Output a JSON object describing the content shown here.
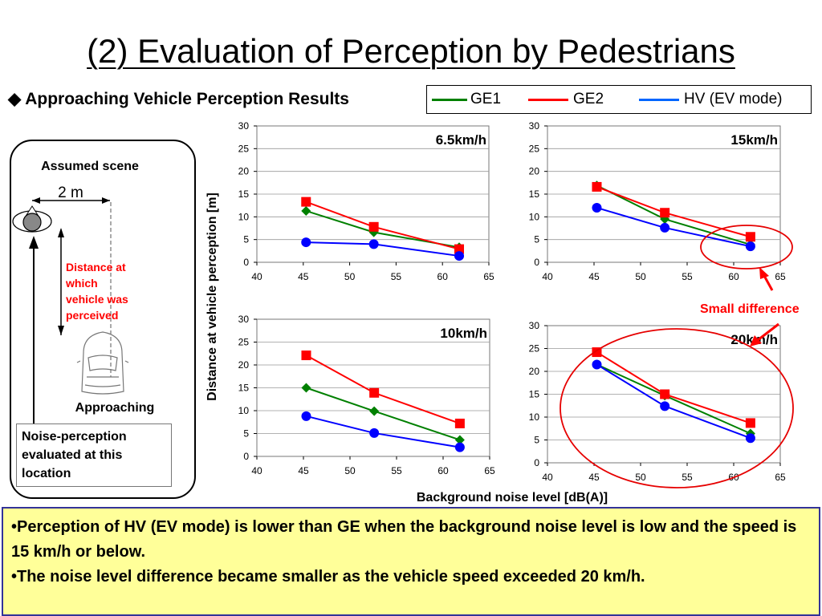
{
  "slide": {
    "title": "(2) Evaluation of Perception by Pedestrians",
    "subtitle": "◆ Approaching Vehicle Perception Results",
    "y_axis_label": "Distance at vehicle perception [m]",
    "x_axis_label": "Background noise level [dB(A)]",
    "annotation": "Small difference",
    "summary": [
      "•Perception of HV (EV mode) is lower than GE when the background noise level is low and the speed is 15 km/h or below.",
      "•The noise level difference became smaller as the vehicle speed exceeded 20 km/h."
    ]
  },
  "legend": {
    "entries": [
      {
        "name": "GE1",
        "color": "#008000",
        "marker": "diamond"
      },
      {
        "name": "GE2",
        "color": "#ff0000",
        "marker": "square"
      },
      {
        "name": "HV (EV mode)",
        "color": "#0000ff",
        "marker": "circle"
      }
    ]
  },
  "scene": {
    "title": "Assumed scene",
    "distance_label": "2 m",
    "perceived_label": "Distance at which vehicle was perceived",
    "approaching_label": "Approaching",
    "note": "Noise-perception evaluated at this location"
  },
  "chart_data": [
    {
      "type": "line",
      "title": "6.5km/h",
      "xlim": [
        40,
        65
      ],
      "ylim": [
        0,
        30
      ],
      "xticks": [
        40,
        45,
        50,
        55,
        60,
        65
      ],
      "yticks": [
        0,
        5,
        10,
        15,
        20,
        25,
        30
      ],
      "series": [
        {
          "name": "GE1",
          "x": [
            45.3,
            52.6,
            61.8
          ],
          "values": [
            11.3,
            6.6,
            3.3
          ]
        },
        {
          "name": "GE2",
          "x": [
            45.3,
            52.6,
            61.8
          ],
          "values": [
            13.3,
            7.8,
            2.9
          ]
        },
        {
          "name": "HV (EV mode)",
          "x": [
            45.3,
            52.6,
            61.8
          ],
          "values": [
            4.4,
            4.0,
            1.4
          ]
        }
      ]
    },
    {
      "type": "line",
      "title": "15km/h",
      "xlim": [
        40,
        65
      ],
      "ylim": [
        0,
        30
      ],
      "xticks": [
        40,
        45,
        50,
        55,
        60,
        65
      ],
      "yticks": [
        0,
        5,
        10,
        15,
        20,
        25,
        30
      ],
      "series": [
        {
          "name": "GE1",
          "x": [
            45.3,
            52.6,
            61.8
          ],
          "values": [
            16.9,
            9.5,
            3.9
          ]
        },
        {
          "name": "GE2",
          "x": [
            45.3,
            52.6,
            61.8
          ],
          "values": [
            16.6,
            10.9,
            5.6
          ]
        },
        {
          "name": "HV (EV mode)",
          "x": [
            45.3,
            52.6,
            61.8
          ],
          "values": [
            12.0,
            7.6,
            3.5
          ]
        }
      ]
    },
    {
      "type": "line",
      "title": "10km/h",
      "xlim": [
        40,
        65
      ],
      "ylim": [
        0,
        30
      ],
      "xticks": [
        40,
        45,
        50,
        55,
        60,
        65
      ],
      "yticks": [
        0,
        5,
        10,
        15,
        20,
        25,
        30
      ],
      "series": [
        {
          "name": "GE1",
          "x": [
            45.3,
            52.6,
            61.8
          ],
          "values": [
            15.0,
            9.9,
            3.6
          ]
        },
        {
          "name": "GE2",
          "x": [
            45.3,
            52.6,
            61.8
          ],
          "values": [
            22.1,
            13.9,
            7.2
          ]
        },
        {
          "name": "HV (EV mode)",
          "x": [
            45.3,
            52.6,
            61.8
          ],
          "values": [
            8.8,
            5.1,
            2.0
          ]
        }
      ]
    },
    {
      "type": "line",
      "title": "20km/h",
      "xlim": [
        40,
        65
      ],
      "ylim": [
        0,
        30
      ],
      "xticks": [
        40,
        45,
        50,
        55,
        60,
        65
      ],
      "yticks": [
        0,
        5,
        10,
        15,
        20,
        25,
        30
      ],
      "series": [
        {
          "name": "GE1",
          "x": [
            45.3,
            52.6,
            61.8
          ],
          "values": [
            21.5,
            14.7,
            6.4
          ]
        },
        {
          "name": "GE2",
          "x": [
            45.3,
            52.6,
            61.8
          ],
          "values": [
            24.2,
            15.0,
            8.7
          ]
        },
        {
          "name": "HV (EV mode)",
          "x": [
            45.3,
            52.6,
            61.8
          ],
          "values": [
            21.5,
            12.4,
            5.4
          ]
        }
      ]
    }
  ]
}
